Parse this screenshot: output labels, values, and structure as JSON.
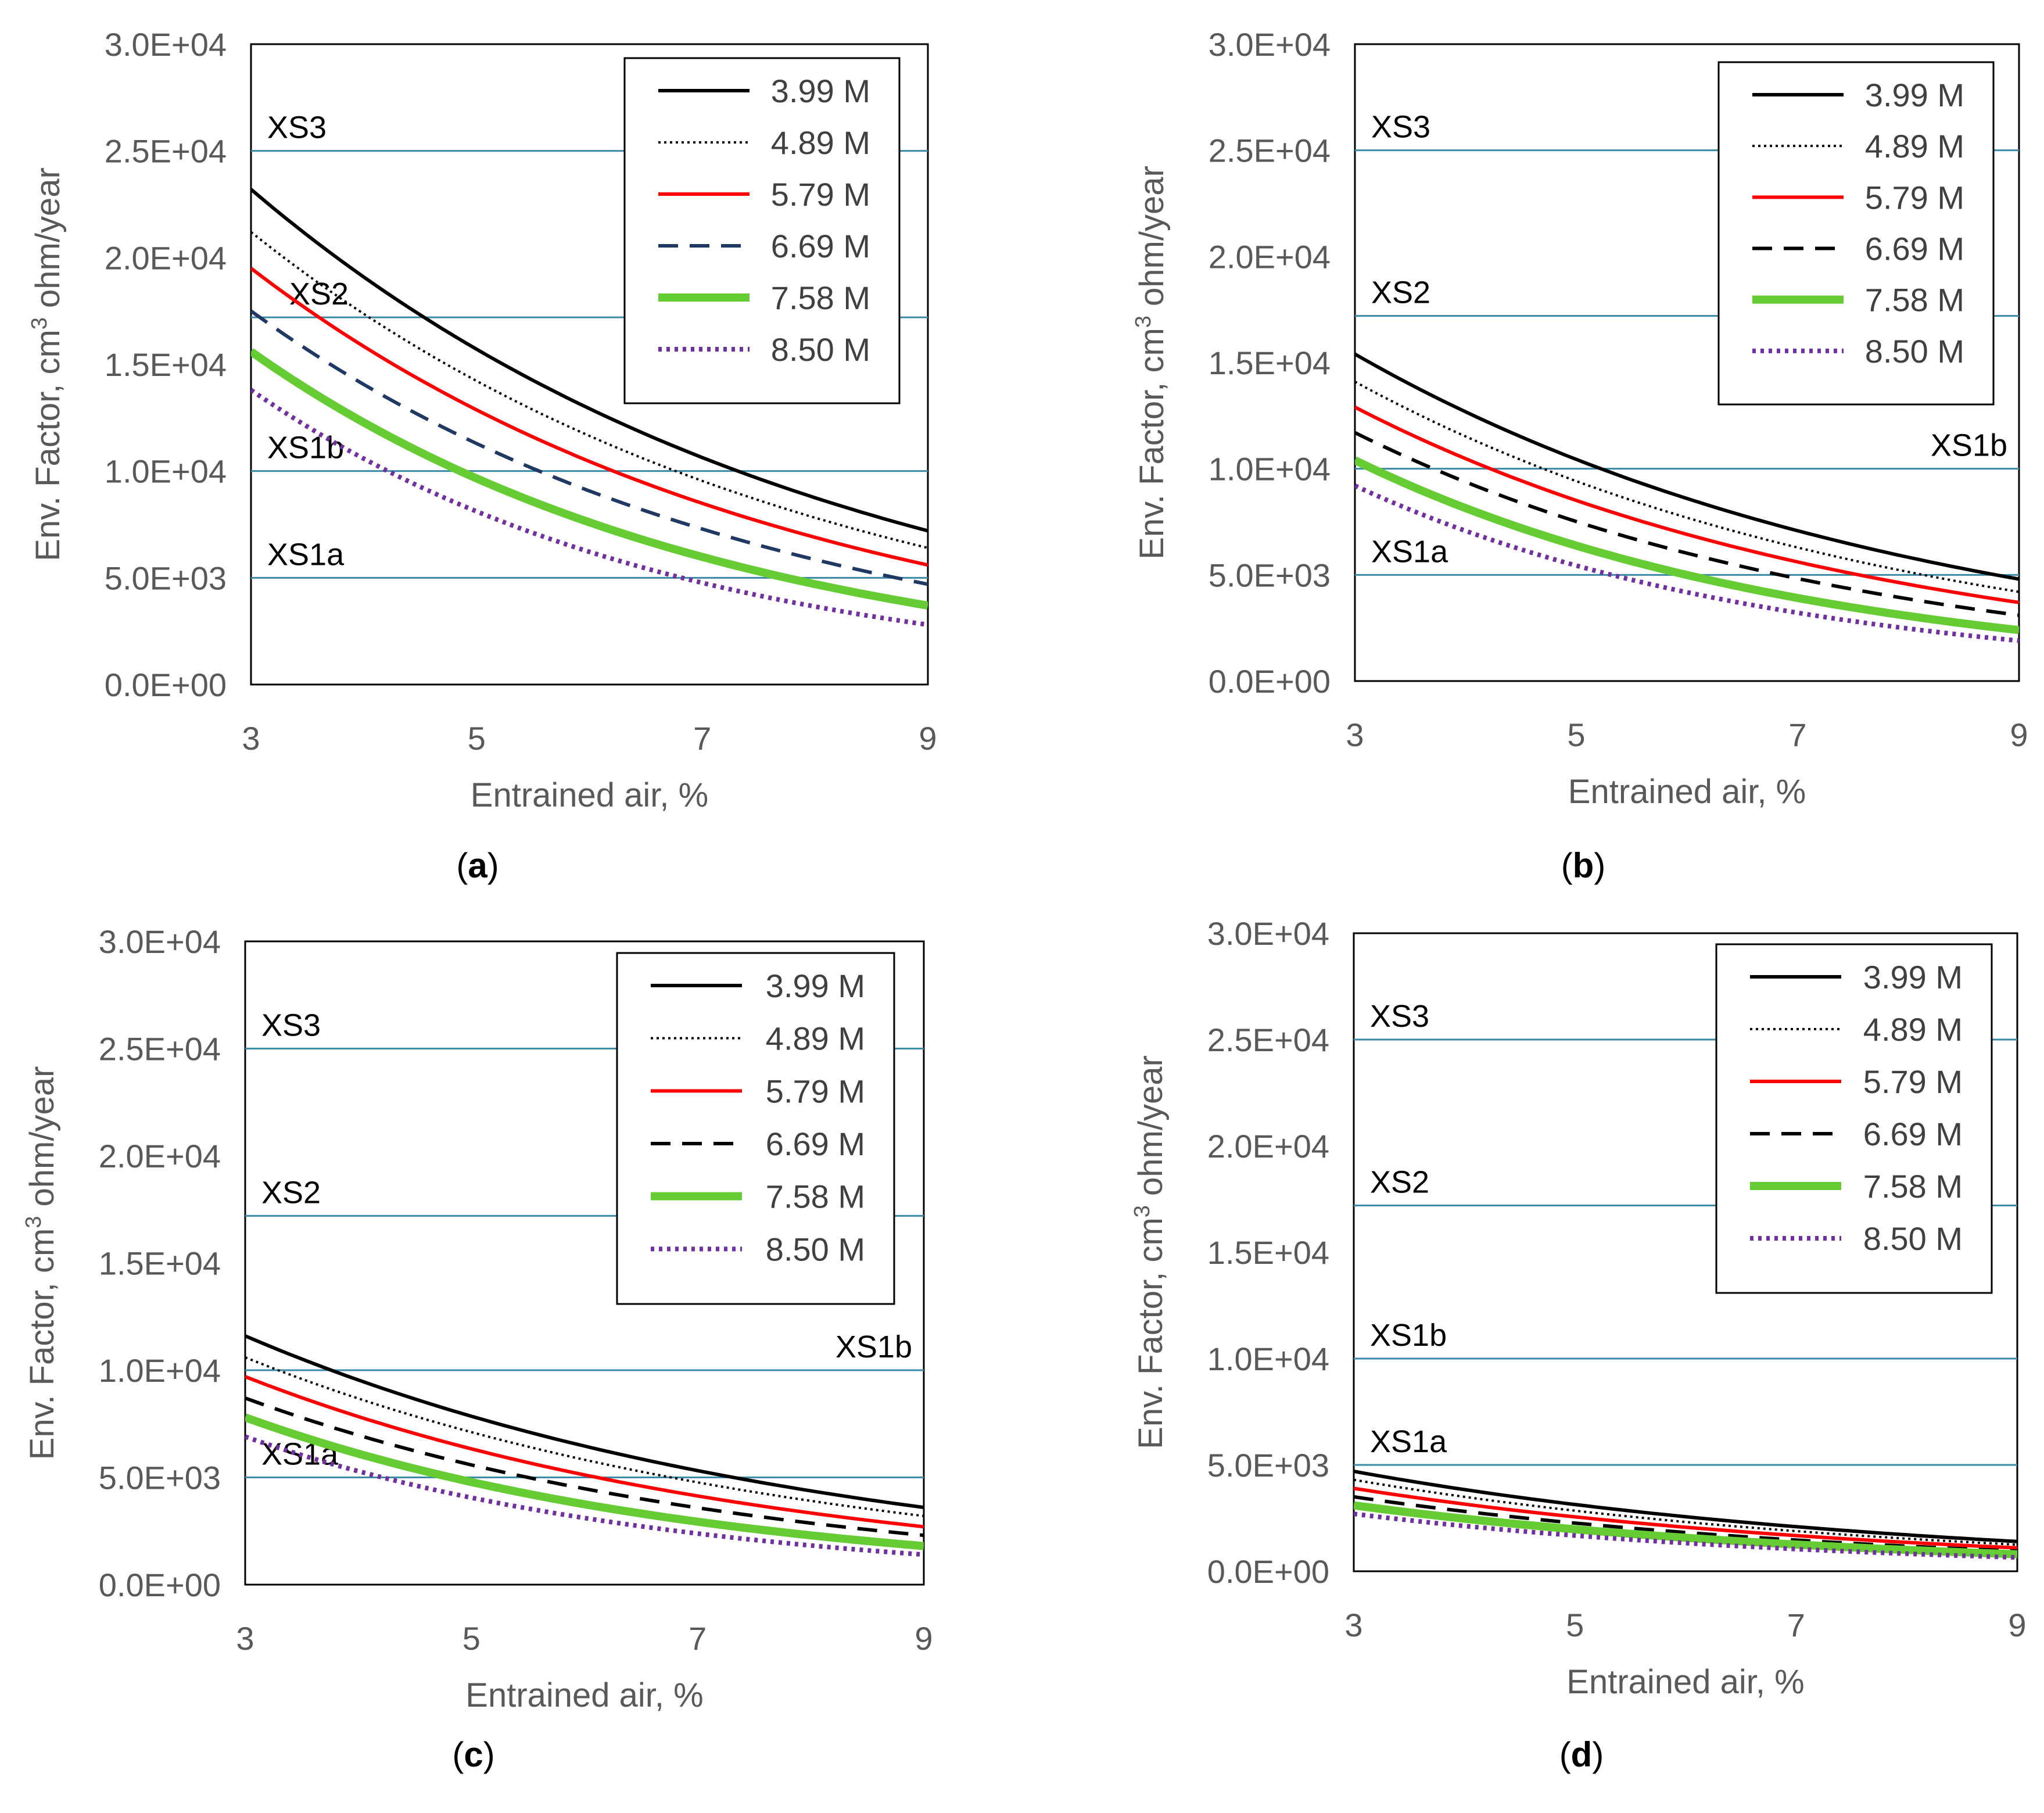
{
  "figure": {
    "legend_entries": [
      "3.99 M",
      "4.89 M",
      "5.79 M",
      "6.69 M",
      "7.58 M",
      "8.50 M"
    ],
    "colors": {
      "zone_line": "#3a8aa8",
      "axis_text": "#595959",
      "m399": "#000000",
      "m489": "#000000",
      "m579": "#ff0000",
      "m669_a": "#1f3864",
      "m669": "#000000",
      "m758": "#66cc33",
      "m850": "#7030a0"
    }
  },
  "chart_data": [
    {
      "id": "a",
      "caption_open": "(",
      "caption_letter": "a",
      "caption_close": ")",
      "type": "line",
      "xlabel": "Entrained air, %",
      "ylabel": "Env. Factor, cm3 ohm/year",
      "ylabel_parts": [
        "Env. Factor, cm",
        "3",
        " ohm/year"
      ],
      "xlim": [
        3,
        9
      ],
      "ylim": [
        0,
        30000
      ],
      "xticks": [
        3,
        5,
        7,
        9
      ],
      "xtick_labels": [
        "3",
        "5",
        "7",
        "9"
      ],
      "ytick_labels": [
        "0.0E+00",
        "5.0E+03",
        "1.0E+04",
        "1.5E+04",
        "2.0E+04",
        "2.5E+04",
        "3.0E+04"
      ],
      "yticks": [
        0,
        5000,
        10000,
        15000,
        20000,
        25000,
        30000
      ],
      "thresholds": [
        {
          "name": "XS3",
          "value": 25000,
          "label_side": "left"
        },
        {
          "name": "XS2",
          "value": 17200,
          "label_side": "left"
        },
        {
          "name": "XS1b",
          "value": 10000,
          "label_side": "left"
        },
        {
          "name": "XS1a",
          "value": 5000,
          "label_side": "left"
        }
      ],
      "series": [
        {
          "name": "3.99 M",
          "x0": 3,
          "y0": 23200,
          "x1": 9,
          "y1": 7200
        },
        {
          "name": "4.89 M",
          "x0": 3,
          "y0": 21200,
          "x1": 9,
          "y1": 6400
        },
        {
          "name": "5.79 M",
          "x0": 3,
          "y0": 19500,
          "x1": 9,
          "y1": 5600
        },
        {
          "name": "6.69 M",
          "x0": 3,
          "y0": 17500,
          "x1": 9,
          "y1": 4700
        },
        {
          "name": "7.58 M",
          "x0": 3,
          "y0": 15600,
          "x1": 9,
          "y1": 3700
        },
        {
          "name": "8.50 M",
          "x0": 3,
          "y0": 13800,
          "x1": 9,
          "y1": 2800
        }
      ]
    },
    {
      "id": "b",
      "caption_open": "(",
      "caption_letter": "b",
      "caption_close": ")",
      "type": "line",
      "xlabel": "Entrained air, %",
      "ylabel": "Env. Factor, cm3 ohm/year",
      "ylabel_parts": [
        "Env. Factor, cm",
        "3",
        " ohm/year"
      ],
      "xlim": [
        3,
        9
      ],
      "ylim": [
        0,
        30000
      ],
      "xticks": [
        3,
        5,
        7,
        9
      ],
      "xtick_labels": [
        "3",
        "5",
        "7",
        "9"
      ],
      "ytick_labels": [
        "0.0E+00",
        "5.0E+03",
        "1.0E+04",
        "1.5E+04",
        "2.0E+04",
        "2.5E+04",
        "3.0E+04"
      ],
      "yticks": [
        0,
        5000,
        10000,
        15000,
        20000,
        25000,
        30000
      ],
      "thresholds": [
        {
          "name": "XS3",
          "value": 25000,
          "label_side": "left"
        },
        {
          "name": "XS2",
          "value": 17200,
          "label_side": "left"
        },
        {
          "name": "XS1b",
          "value": 10000,
          "label_side": "right"
        },
        {
          "name": "XS1a",
          "value": 5000,
          "label_side": "left"
        }
      ],
      "series": [
        {
          "name": "3.99 M",
          "x0": 3,
          "y0": 15400,
          "x1": 9,
          "y1": 4800
        },
        {
          "name": "4.89 M",
          "x0": 3,
          "y0": 14100,
          "x1": 9,
          "y1": 4200
        },
        {
          "name": "5.79 M",
          "x0": 3,
          "y0": 12900,
          "x1": 9,
          "y1": 3700
        },
        {
          "name": "6.69 M",
          "x0": 3,
          "y0": 11700,
          "x1": 9,
          "y1": 3100
        },
        {
          "name": "7.58 M",
          "x0": 3,
          "y0": 10400,
          "x1": 9,
          "y1": 2400
        },
        {
          "name": "8.50 M",
          "x0": 3,
          "y0": 9200,
          "x1": 9,
          "y1": 1900
        }
      ]
    },
    {
      "id": "c",
      "caption_open": "(",
      "caption_letter": "c",
      "caption_close": ")",
      "type": "line",
      "xlabel": "Entrained air, %",
      "ylabel": "Env. Factor, cm3 ohm/year",
      "ylabel_parts": [
        "Env. Factor, cm",
        "3",
        " ohm/year"
      ],
      "xlim": [
        3,
        9
      ],
      "ylim": [
        0,
        30000
      ],
      "xticks": [
        3,
        5,
        7,
        9
      ],
      "xtick_labels": [
        "3",
        "5",
        "7",
        "9"
      ],
      "ytick_labels": [
        "0.0E+00",
        "5.0E+03",
        "1.0E+04",
        "1.5E+04",
        "2.0E+04",
        "2.5E+04",
        "3.0E+04"
      ],
      "yticks": [
        0,
        5000,
        10000,
        15000,
        20000,
        25000,
        30000
      ],
      "thresholds": [
        {
          "name": "XS3",
          "value": 25000,
          "label_side": "left"
        },
        {
          "name": "XS2",
          "value": 17200,
          "label_side": "left"
        },
        {
          "name": "XS1b",
          "value": 10000,
          "label_side": "right"
        },
        {
          "name": "XS1a",
          "value": 5000,
          "label_side": "left"
        }
      ],
      "series": [
        {
          "name": "3.99 M",
          "x0": 3,
          "y0": 11600,
          "x1": 9,
          "y1": 3600
        },
        {
          "name": "4.89 M",
          "x0": 3,
          "y0": 10600,
          "x1": 9,
          "y1": 3200
        },
        {
          "name": "5.79 M",
          "x0": 3,
          "y0": 9700,
          "x1": 9,
          "y1": 2700
        },
        {
          "name": "6.69 M",
          "x0": 3,
          "y0": 8700,
          "x1": 9,
          "y1": 2300
        },
        {
          "name": "7.58 M",
          "x0": 3,
          "y0": 7800,
          "x1": 9,
          "y1": 1800
        },
        {
          "name": "8.50 M",
          "x0": 3,
          "y0": 6900,
          "x1": 9,
          "y1": 1400
        }
      ]
    },
    {
      "id": "d",
      "caption_open": "(",
      "caption_letter": "d",
      "caption_close": ")",
      "type": "line",
      "xlabel": "Entrained air, %",
      "ylabel": "Env. Factor, cm3 ohm/year",
      "ylabel_parts": [
        "Env. Factor, cm",
        "3",
        " ohm/year"
      ],
      "xlim": [
        3,
        9
      ],
      "ylim": [
        0,
        30000
      ],
      "xticks": [
        3,
        5,
        7,
        9
      ],
      "xtick_labels": [
        "3",
        "5",
        "7",
        "9"
      ],
      "ytick_labels": [
        "0.0E+00",
        "5.0E+03",
        "1.0E+04",
        "1.5E+04",
        "2.0E+04",
        "2.5E+04",
        "3.0E+04"
      ],
      "yticks": [
        0,
        5000,
        10000,
        15000,
        20000,
        25000,
        30000
      ],
      "thresholds": [
        {
          "name": "XS3",
          "value": 25000,
          "label_side": "left"
        },
        {
          "name": "XS2",
          "value": 17200,
          "label_side": "left"
        },
        {
          "name": "XS1b",
          "value": 10000,
          "label_side": "left"
        },
        {
          "name": "XS1a",
          "value": 5000,
          "label_side": "left"
        }
      ],
      "series": [
        {
          "name": "3.99 M",
          "x0": 3,
          "y0": 4700,
          "x1": 9,
          "y1": 1400
        },
        {
          "name": "4.89 M",
          "x0": 3,
          "y0": 4300,
          "x1": 9,
          "y1": 1250
        },
        {
          "name": "5.79 M",
          "x0": 3,
          "y0": 3900,
          "x1": 9,
          "y1": 1100
        },
        {
          "name": "6.69 M",
          "x0": 3,
          "y0": 3500,
          "x1": 9,
          "y1": 950
        },
        {
          "name": "7.58 M",
          "x0": 3,
          "y0": 3100,
          "x1": 9,
          "y1": 800
        },
        {
          "name": "8.50 M",
          "x0": 3,
          "y0": 2700,
          "x1": 9,
          "y1": 650
        }
      ]
    }
  ]
}
